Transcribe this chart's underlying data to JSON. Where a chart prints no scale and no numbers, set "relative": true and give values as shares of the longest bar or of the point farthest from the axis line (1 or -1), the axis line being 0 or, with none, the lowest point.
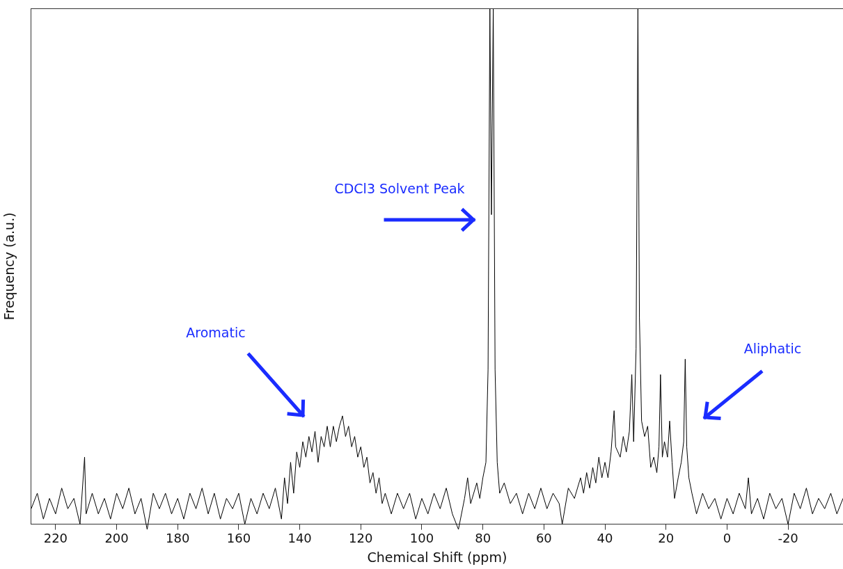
{
  "chart_data": {
    "type": "line",
    "xlabel": "Chemical Shift (ppm)",
    "ylabel": "Frequency (a.u.)",
    "relative": true,
    "grid": false,
    "legend": false,
    "marker": "none",
    "line_style": "solid",
    "xlim": [
      228,
      -38
    ],
    "xticks": [
      220,
      200,
      180,
      160,
      140,
      120,
      100,
      80,
      60,
      40,
      20,
      0,
      -20
    ],
    "annotations": [
      "Aromatic",
      "CDCl3 Solvent Peak",
      "Aliphatic"
    ],
    "series": [
      {
        "color": "#000000",
        "x": [
          228,
          226,
          224,
          222,
          220,
          218,
          216,
          214,
          212,
          210.5,
          210,
          208,
          206,
          204,
          202,
          200,
          198,
          196,
          194,
          192,
          190,
          188,
          186,
          184,
          182,
          180,
          178,
          176,
          174,
          172,
          170,
          168,
          166,
          164,
          162,
          160,
          158,
          156,
          154,
          152,
          150,
          148,
          146,
          145,
          144,
          143,
          142,
          141,
          140,
          139,
          138,
          137,
          136,
          135,
          134,
          133,
          132,
          131,
          130,
          129,
          128,
          127,
          126,
          125,
          124,
          123,
          122,
          121,
          120,
          119,
          118,
          117,
          116,
          115,
          114,
          113,
          112,
          110,
          108,
          106,
          104,
          102,
          100,
          98,
          96,
          94,
          92,
          90,
          88,
          86,
          85,
          84,
          82,
          81,
          80,
          79,
          78.3,
          77.7,
          77.2,
          76.6,
          76.0,
          75.3,
          74.5,
          73,
          71,
          69,
          67,
          65,
          63,
          61,
          59,
          57,
          55,
          54,
          52,
          50,
          48,
          47,
          46,
          45,
          44,
          43,
          42,
          41,
          40,
          39,
          38,
          37,
          36.5,
          35,
          34,
          33,
          32,
          31.2,
          30.6,
          29.8,
          29.2,
          28.7,
          28,
          27,
          26,
          25,
          24,
          23,
          22.3,
          21.8,
          21.2,
          20.5,
          19.5,
          18.8,
          18,
          17.2,
          16,
          15,
          14.2,
          13.7,
          13.2,
          12.5,
          11.5,
          10,
          8,
          6,
          4,
          2,
          0,
          -2,
          -4,
          -6,
          -7,
          -8,
          -10,
          -12,
          -14,
          -16,
          -18,
          -20,
          -22,
          -24,
          -26,
          -28,
          -30,
          -32,
          -34,
          -36,
          -38
        ],
        "values": [
          0.03,
          0.06,
          0.01,
          0.05,
          0.02,
          0.07,
          0.03,
          0.05,
          0.0,
          0.13,
          0.02,
          0.06,
          0.02,
          0.05,
          0.01,
          0.06,
          0.03,
          0.07,
          0.02,
          0.05,
          -0.01,
          0.06,
          0.03,
          0.06,
          0.02,
          0.05,
          0.01,
          0.06,
          0.03,
          0.07,
          0.02,
          0.06,
          0.01,
          0.05,
          0.03,
          0.06,
          0.0,
          0.05,
          0.02,
          0.06,
          0.03,
          0.07,
          0.01,
          0.09,
          0.04,
          0.12,
          0.06,
          0.14,
          0.11,
          0.16,
          0.13,
          0.17,
          0.14,
          0.18,
          0.12,
          0.17,
          0.15,
          0.19,
          0.15,
          0.19,
          0.16,
          0.19,
          0.21,
          0.17,
          0.19,
          0.15,
          0.17,
          0.13,
          0.15,
          0.11,
          0.13,
          0.08,
          0.1,
          0.06,
          0.09,
          0.04,
          0.06,
          0.02,
          0.06,
          0.03,
          0.06,
          0.01,
          0.05,
          0.02,
          0.06,
          0.03,
          0.07,
          0.02,
          -0.01,
          0.05,
          0.09,
          0.04,
          0.08,
          0.05,
          0.09,
          0.12,
          0.3,
          1,
          0.6,
          1,
          0.3,
          0.12,
          0.06,
          0.08,
          0.04,
          0.06,
          0.02,
          0.06,
          0.03,
          0.07,
          0.03,
          0.06,
          0.04,
          0.0,
          0.07,
          0.05,
          0.09,
          0.06,
          0.1,
          0.07,
          0.11,
          0.08,
          0.13,
          0.09,
          0.12,
          0.09,
          0.14,
          0.22,
          0.15,
          0.13,
          0.17,
          0.14,
          0.18,
          0.29,
          0.16,
          0.34,
          1,
          0.4,
          0.2,
          0.17,
          0.19,
          0.11,
          0.13,
          0.1,
          0.15,
          0.29,
          0.13,
          0.16,
          0.13,
          0.2,
          0.12,
          0.05,
          0.09,
          0.12,
          0.16,
          0.32,
          0.15,
          0.09,
          0.06,
          0.02,
          0.06,
          0.03,
          0.05,
          0.01,
          0.05,
          0.02,
          0.06,
          0.03,
          0.09,
          0.02,
          0.05,
          0.01,
          0.06,
          0.03,
          0.05,
          0.0,
          0.06,
          0.03,
          0.07,
          0.02,
          0.05,
          0.03,
          0.06,
          0.02,
          0.05
        ]
      }
    ]
  }
}
